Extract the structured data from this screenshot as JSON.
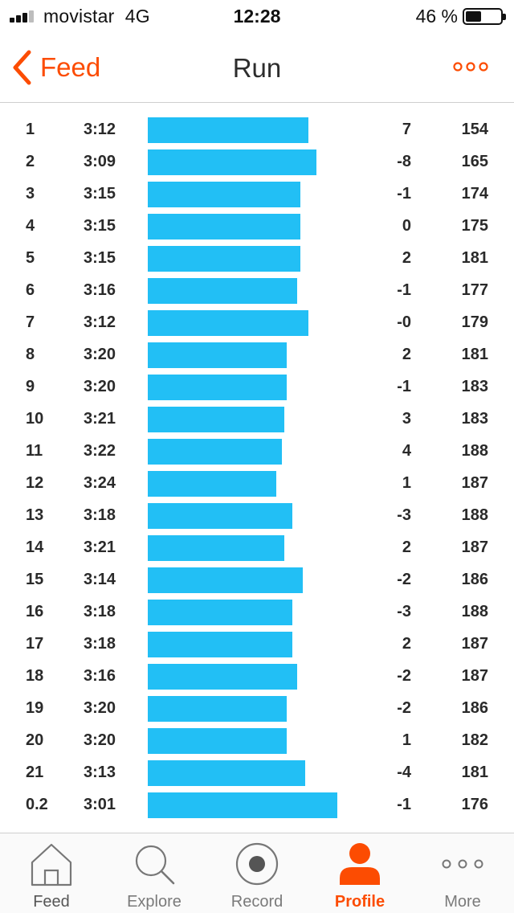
{
  "status_bar": {
    "carrier": "movistar",
    "network": "4G",
    "time": "12:28",
    "battery_percent": "46 %",
    "battery_level": 0.46,
    "signal_bars": 3
  },
  "nav": {
    "back_label": "Feed",
    "title": "Run"
  },
  "splits": [
    {
      "km": "1",
      "pace": "3:12",
      "elev": "7",
      "hr": "154",
      "pace_seconds": 192
    },
    {
      "km": "2",
      "pace": "3:09",
      "elev": "-8",
      "hr": "165",
      "pace_seconds": 189
    },
    {
      "km": "3",
      "pace": "3:15",
      "elev": "-1",
      "hr": "174",
      "pace_seconds": 195
    },
    {
      "km": "4",
      "pace": "3:15",
      "elev": "0",
      "hr": "175",
      "pace_seconds": 195
    },
    {
      "km": "5",
      "pace": "3:15",
      "elev": "2",
      "hr": "181",
      "pace_seconds": 195
    },
    {
      "km": "6",
      "pace": "3:16",
      "elev": "-1",
      "hr": "177",
      "pace_seconds": 196
    },
    {
      "km": "7",
      "pace": "3:12",
      "elev": "-0",
      "hr": "179",
      "pace_seconds": 192
    },
    {
      "km": "8",
      "pace": "3:20",
      "elev": "2",
      "hr": "181",
      "pace_seconds": 200
    },
    {
      "km": "9",
      "pace": "3:20",
      "elev": "-1",
      "hr": "183",
      "pace_seconds": 200
    },
    {
      "km": "10",
      "pace": "3:21",
      "elev": "3",
      "hr": "183",
      "pace_seconds": 201
    },
    {
      "km": "11",
      "pace": "3:22",
      "elev": "4",
      "hr": "188",
      "pace_seconds": 202
    },
    {
      "km": "12",
      "pace": "3:24",
      "elev": "1",
      "hr": "187",
      "pace_seconds": 204
    },
    {
      "km": "13",
      "pace": "3:18",
      "elev": "-3",
      "hr": "188",
      "pace_seconds": 198
    },
    {
      "km": "14",
      "pace": "3:21",
      "elev": "2",
      "hr": "187",
      "pace_seconds": 201
    },
    {
      "km": "15",
      "pace": "3:14",
      "elev": "-2",
      "hr": "186",
      "pace_seconds": 194
    },
    {
      "km": "16",
      "pace": "3:18",
      "elev": "-3",
      "hr": "188",
      "pace_seconds": 198
    },
    {
      "km": "17",
      "pace": "3:18",
      "elev": "2",
      "hr": "187",
      "pace_seconds": 198
    },
    {
      "km": "18",
      "pace": "3:16",
      "elev": "-2",
      "hr": "187",
      "pace_seconds": 196
    },
    {
      "km": "19",
      "pace": "3:20",
      "elev": "-2",
      "hr": "186",
      "pace_seconds": 200
    },
    {
      "km": "20",
      "pace": "3:20",
      "elev": "1",
      "hr": "182",
      "pace_seconds": 200
    },
    {
      "km": "21",
      "pace": "3:13",
      "elev": "-4",
      "hr": "181",
      "pace_seconds": 193
    },
    {
      "km": "0.2",
      "pace": "3:01",
      "elev": "-1",
      "hr": "176",
      "pace_seconds": 181
    }
  ],
  "tabs": [
    {
      "label": "Feed",
      "icon": "home-icon",
      "active": false
    },
    {
      "label": "Explore",
      "icon": "search-icon",
      "active": false
    },
    {
      "label": "Record",
      "icon": "record-icon",
      "active": false
    },
    {
      "label": "Profile",
      "icon": "profile-icon",
      "active": true
    },
    {
      "label": "More",
      "icon": "more-dots-icon",
      "active": false
    }
  ],
  "colors": {
    "accent": "#fc4c02",
    "bar": "#22bff5",
    "tab_inactive": "#7a7a7a"
  }
}
